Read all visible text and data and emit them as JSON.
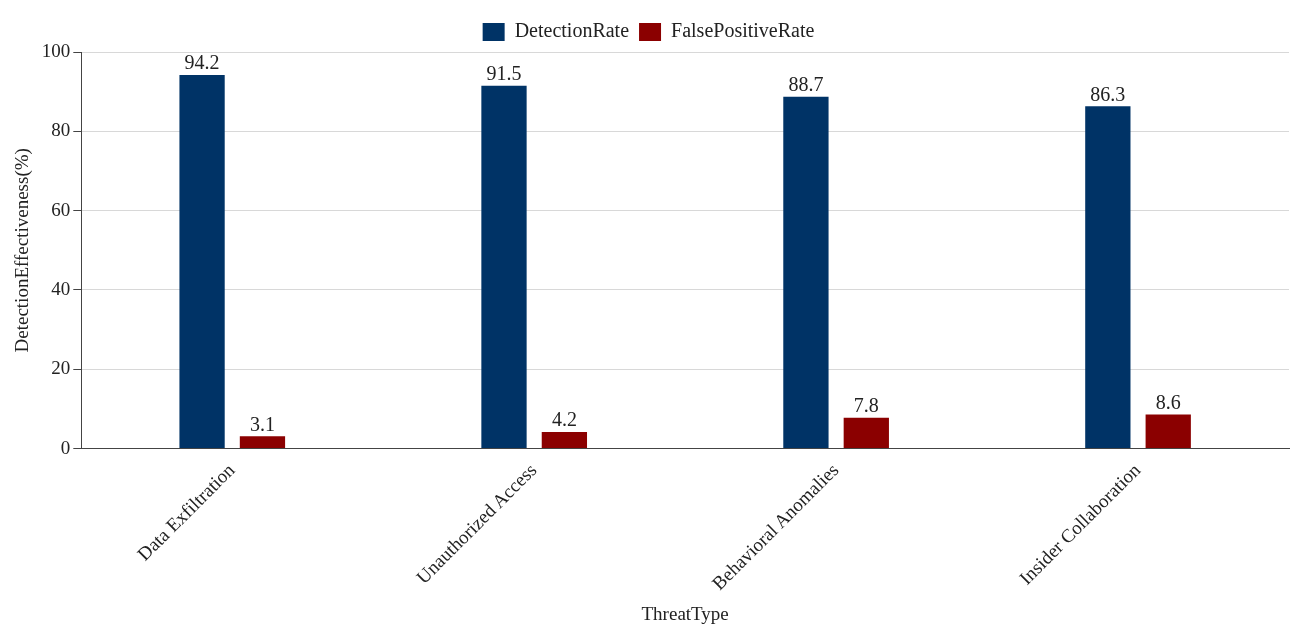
{
  "chart_data": {
    "type": "bar",
    "xlabel": "ThreatType",
    "ylabel": "DetectionEffectiveness(%)",
    "categories": [
      "Data Exfiltration",
      "Unauthorized Access",
      "Behavioral Anomalies",
      "Insider Collaboration"
    ],
    "series": [
      {
        "name": "DetectionRate",
        "color": "#003366",
        "values": [
          94.2,
          91.5,
          88.7,
          86.3
        ]
      },
      {
        "name": "FalsePositiveRate",
        "color": "#8b0000",
        "values": [
          3.1,
          4.2,
          7.8,
          8.6
        ]
      }
    ],
    "ylim": [
      0,
      100
    ],
    "yticks": [
      0,
      20,
      40,
      60,
      80,
      100
    ],
    "grid": "y",
    "legend": "top",
    "data_labels": true
  }
}
